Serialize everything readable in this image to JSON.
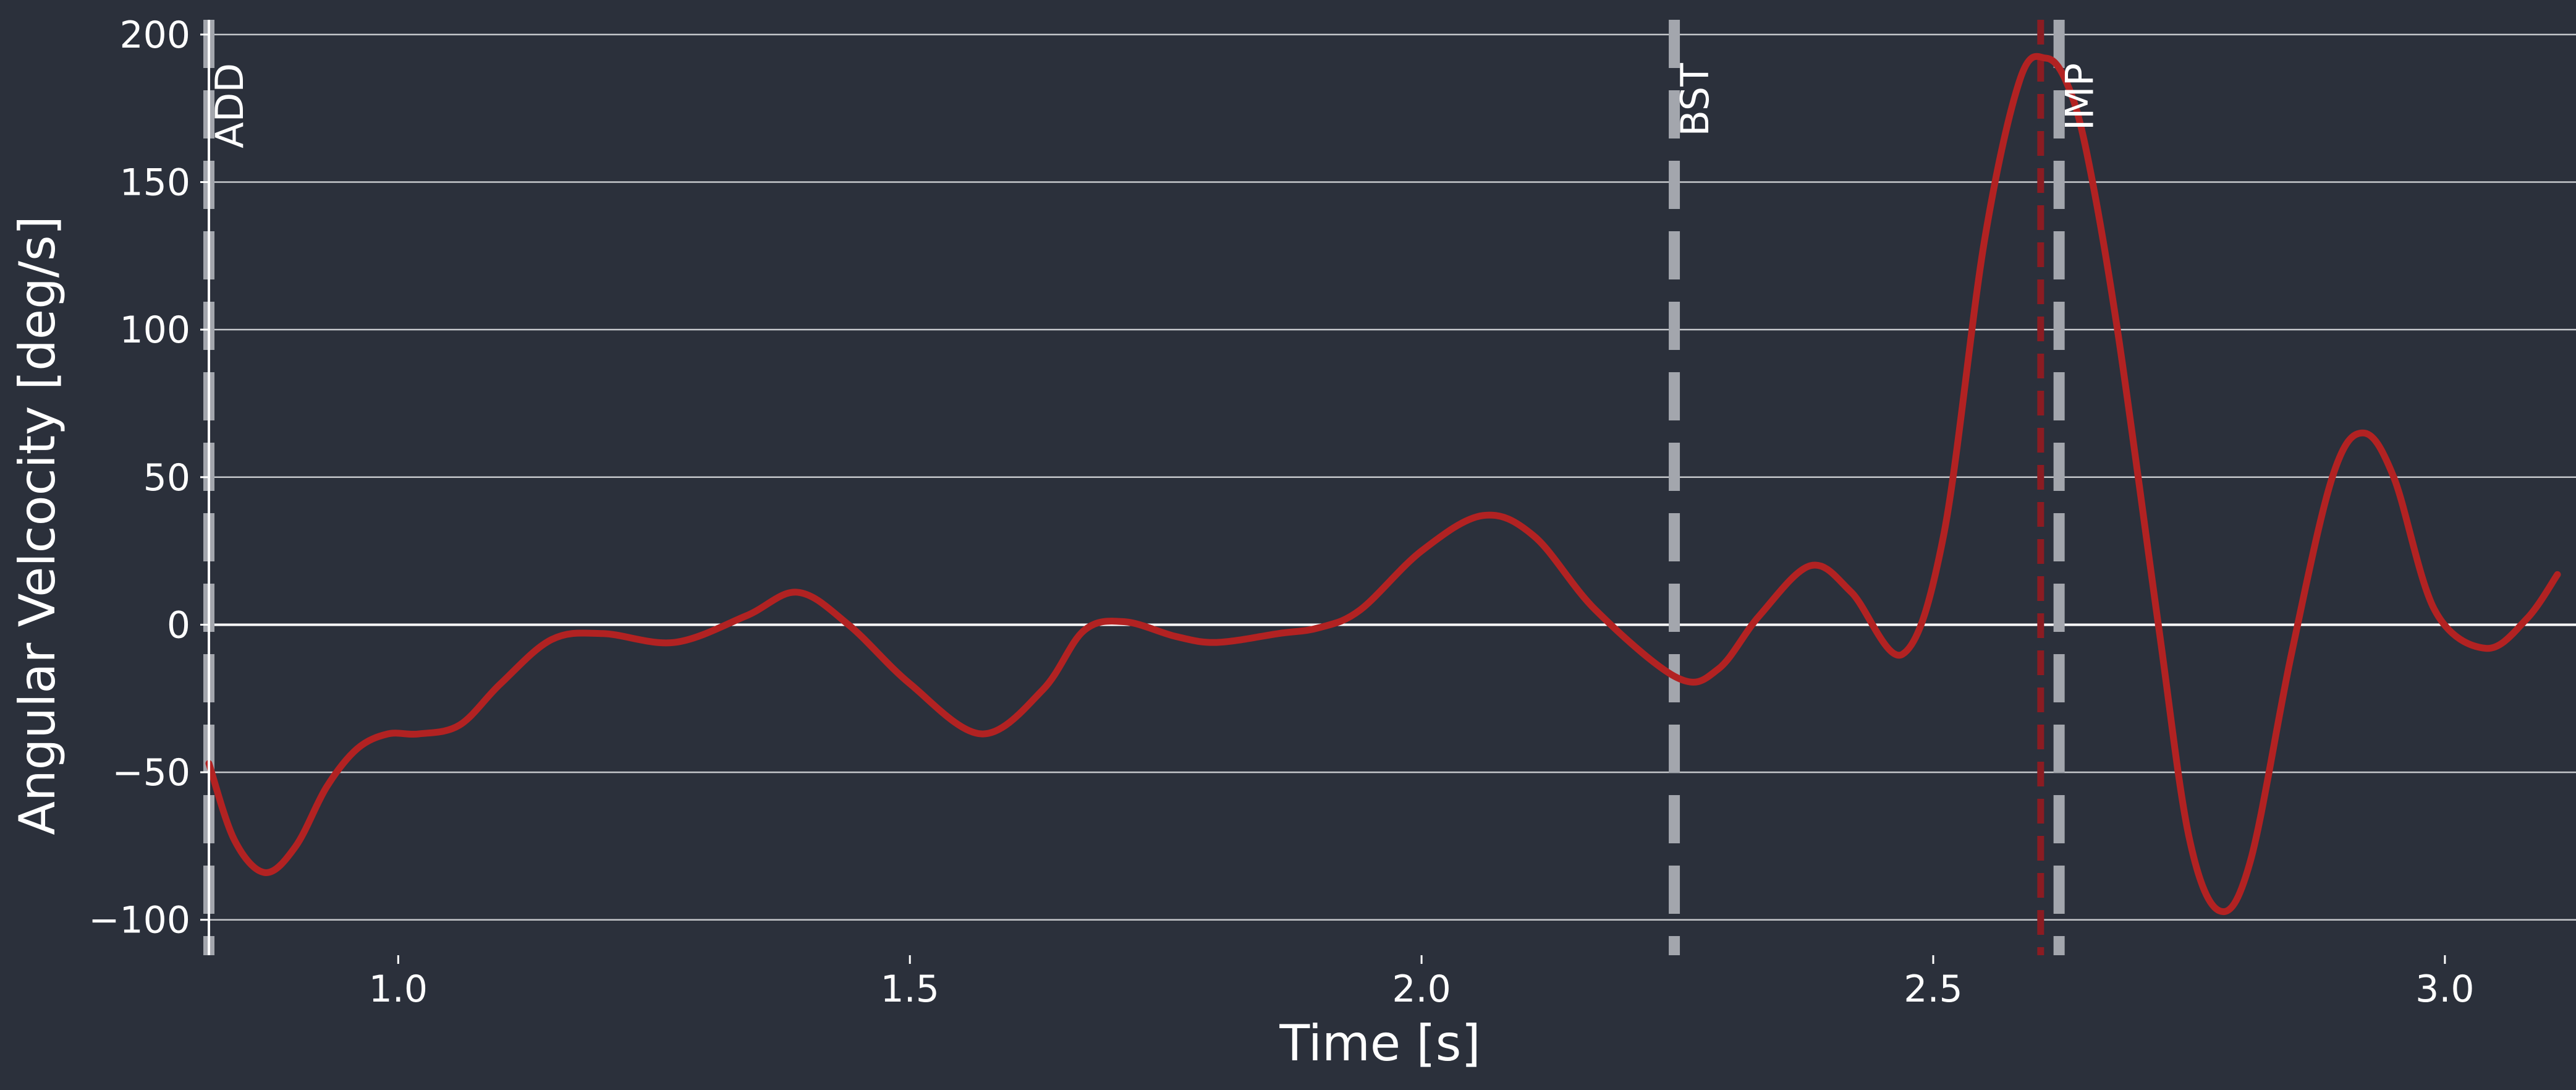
{
  "chart_data": {
    "type": "line",
    "title": "",
    "xlabel": "Time [s]",
    "ylabel": "Angular Velcocity [deg/s]",
    "xlim": [
      0.815,
      3.11
    ],
    "ylim": [
      -112,
      205
    ],
    "xticks": [
      1.0,
      1.5,
      2.0,
      2.5,
      3.0
    ],
    "xtick_labels": [
      "1.0",
      "1.5",
      "2.0",
      "2.5",
      "3.0"
    ],
    "yticks": [
      -100,
      -50,
      0,
      50,
      100,
      150,
      200
    ],
    "ytick_labels": [
      "−100",
      "−50",
      "0",
      "50",
      "100",
      "150",
      "200"
    ],
    "grid": "horizontal",
    "background_color": "#2b303b",
    "series": [
      {
        "color": "#b22222",
        "x": [
          0.815,
          0.84,
          0.87,
          0.9,
          0.93,
          0.96,
          0.99,
          1.02,
          1.06,
          1.1,
          1.15,
          1.2,
          1.27,
          1.34,
          1.39,
          1.44,
          1.5,
          1.57,
          1.63,
          1.67,
          1.71,
          1.76,
          1.8,
          1.86,
          1.9,
          1.94,
          2.0,
          2.06,
          2.11,
          2.17,
          2.25,
          2.29,
          2.33,
          2.38,
          2.42,
          2.47,
          2.51,
          2.55,
          2.585,
          2.61,
          2.63,
          2.65,
          2.68,
          2.72,
          2.75,
          2.78,
          2.81,
          2.85,
          2.89,
          2.92,
          2.95,
          2.99,
          3.04,
          3.08,
          3.11
        ],
        "y": [
          -47,
          -73,
          -84,
          -75,
          -55,
          -42,
          -37,
          -37,
          -34,
          -20,
          -5,
          -3,
          -6,
          3,
          11,
          0,
          -20,
          -37,
          -22,
          -2,
          1,
          -4,
          -6,
          -3,
          -1,
          5,
          25,
          37,
          30,
          5,
          -18,
          -15,
          3,
          20,
          11,
          -10,
          30,
          130,
          185,
          192,
          184,
          160,
          100,
          0,
          -72,
          -97,
          -80,
          -10,
          50,
          65,
          50,
          5,
          -8,
          2,
          17
        ]
      }
    ],
    "events": [
      {
        "label": "ADD",
        "x": 0.815,
        "color": "#a3a6ad"
      },
      {
        "label": "BST",
        "x": 2.247,
        "color": "#a3a6ad"
      },
      {
        "label": "IMP",
        "x": 2.623,
        "color": "#a3a6ad"
      }
    ],
    "peak_marker": {
      "x": 2.605,
      "color": "#8b1c22"
    }
  }
}
